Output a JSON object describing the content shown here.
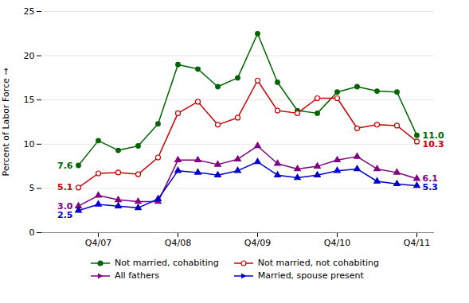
{
  "chart_data": {
    "type": "line",
    "categories": [
      null,
      "Q4/07",
      null,
      null,
      null,
      "Q4/08",
      null,
      null,
      null,
      "Q4/09",
      null,
      null,
      null,
      "Q4/10",
      null,
      null,
      null,
      "Q4/11"
    ],
    "series": [
      {
        "name": "Not married, cohabiting",
        "color": "#006400",
        "marker": "circle",
        "values": [
          7.6,
          10.4,
          9.3,
          9.8,
          12.3,
          19.0,
          18.5,
          16.5,
          17.5,
          22.5,
          17.0,
          13.8,
          13.5,
          15.9,
          16.5,
          16.0,
          15.9,
          11.0
        ],
        "value_labels": [
          "7.6",
          null,
          null,
          null,
          null,
          null,
          null,
          null,
          null,
          null,
          null,
          null,
          null,
          null,
          null,
          null,
          null,
          "11.0"
        ]
      },
      {
        "name": "Not married, not cohabiting",
        "color": "#cc0000",
        "marker": "circle-open",
        "values": [
          5.1,
          6.7,
          6.8,
          6.6,
          8.5,
          13.5,
          14.8,
          12.2,
          13.0,
          17.2,
          13.8,
          13.5,
          15.2,
          15.2,
          11.8,
          12.2,
          12.1,
          10.3
        ],
        "value_labels": [
          "5.1",
          null,
          null,
          null,
          null,
          null,
          null,
          null,
          null,
          null,
          null,
          null,
          null,
          null,
          null,
          null,
          null,
          "10.3"
        ]
      },
      {
        "name": "All fathers",
        "color": "#800080",
        "marker": "triangle",
        "values": [
          3.0,
          4.2,
          3.7,
          3.5,
          3.5,
          8.2,
          8.2,
          7.7,
          8.3,
          9.8,
          7.8,
          7.2,
          7.5,
          8.2,
          8.6,
          7.2,
          6.8,
          6.1
        ],
        "value_labels": [
          "3.0",
          null,
          null,
          null,
          null,
          null,
          null,
          null,
          null,
          null,
          null,
          null,
          null,
          null,
          null,
          null,
          null,
          "6.1"
        ]
      },
      {
        "name": "Married, spouse present",
        "color": "#0000cc",
        "marker": "triangle",
        "values": [
          2.5,
          3.2,
          3.0,
          2.8,
          3.8,
          7.0,
          6.8,
          6.5,
          7.0,
          8.0,
          6.5,
          6.2,
          6.5,
          7.0,
          7.2,
          5.8,
          5.5,
          5.3
        ],
        "value_labels": [
          "2.5",
          null,
          null,
          null,
          null,
          null,
          null,
          null,
          null,
          null,
          null,
          null,
          null,
          null,
          null,
          null,
          null,
          "5.3"
        ]
      }
    ],
    "ylabel": "Percent of Labor Force",
    "ylim": [
      0,
      25
    ],
    "yticks": [
      0,
      5,
      10,
      15,
      20,
      25
    ],
    "grid": true,
    "legend": "bottom",
    "data_labels": true
  }
}
